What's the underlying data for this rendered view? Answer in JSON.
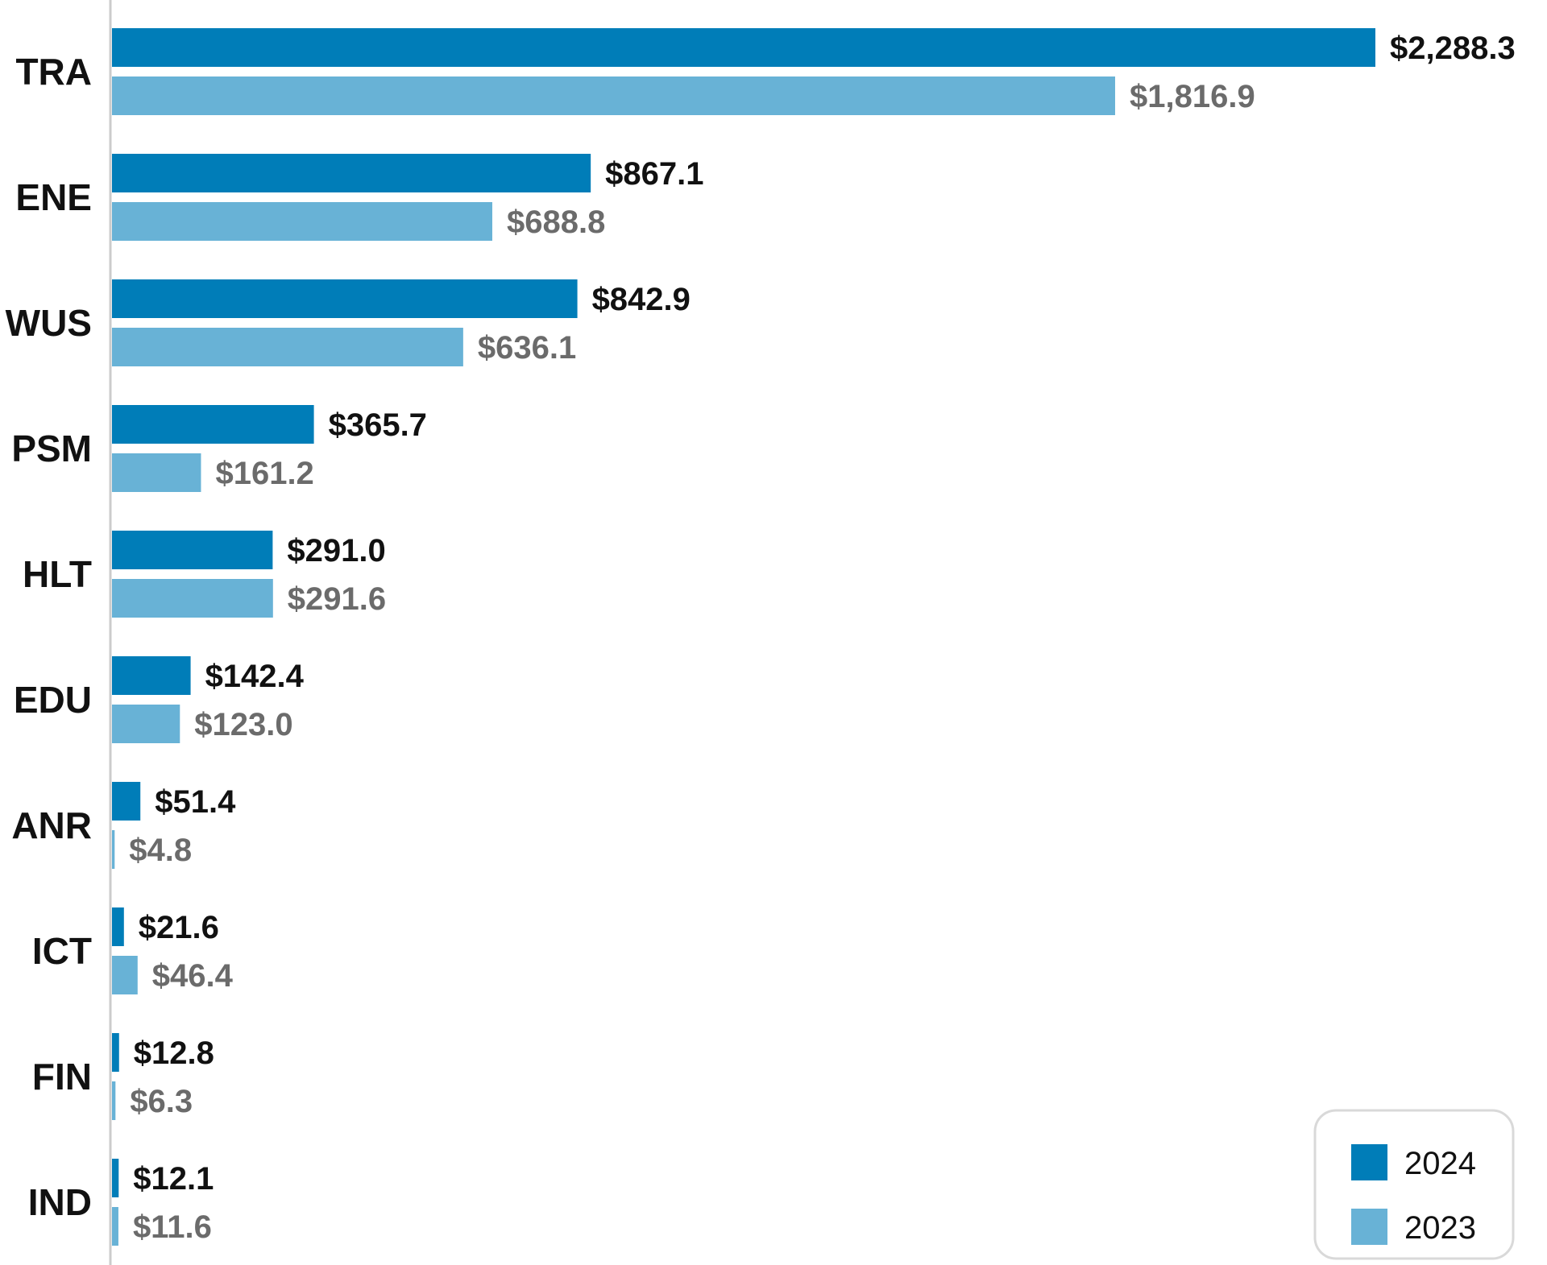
{
  "chart_data": {
    "type": "bar",
    "orientation": "horizontal",
    "title": "",
    "xlabel": "",
    "ylabel": "",
    "grid": false,
    "legend_placement": "bottom-right",
    "xlim": [
      0,
      2288.3
    ],
    "categories": [
      "TRA",
      "ENE",
      "WUS",
      "PSM",
      "HLT",
      "EDU",
      "ANR",
      "ICT",
      "FIN",
      "IND"
    ],
    "series": [
      {
        "name": "2024",
        "color": "#007DB8",
        "label_color": "#111111",
        "values": [
          2288.3,
          867.1,
          842.9,
          365.7,
          291.0,
          142.4,
          51.4,
          21.6,
          12.8,
          12.1
        ],
        "labels": [
          "$2,288.3",
          "$867.1",
          "$842.9",
          "$365.7",
          "$291.0",
          "$142.4",
          "$51.4",
          "$21.6",
          "$12.8",
          "$12.1"
        ]
      },
      {
        "name": "2023",
        "color": "#68B2D6",
        "label_color": "#6B6B6B",
        "values": [
          1816.9,
          688.8,
          636.1,
          161.2,
          291.6,
          123.0,
          4.8,
          46.4,
          6.3,
          11.6
        ],
        "labels": [
          "$1,816.9",
          "$688.8",
          "$636.1",
          "$161.2",
          "$291.6",
          "$123.0",
          "$4.8",
          "$46.4",
          "$6.3",
          "$11.6"
        ]
      }
    ]
  },
  "colors": {
    "axis_line": "#CCCCCC",
    "legend_border": "#D9D9D9"
  }
}
